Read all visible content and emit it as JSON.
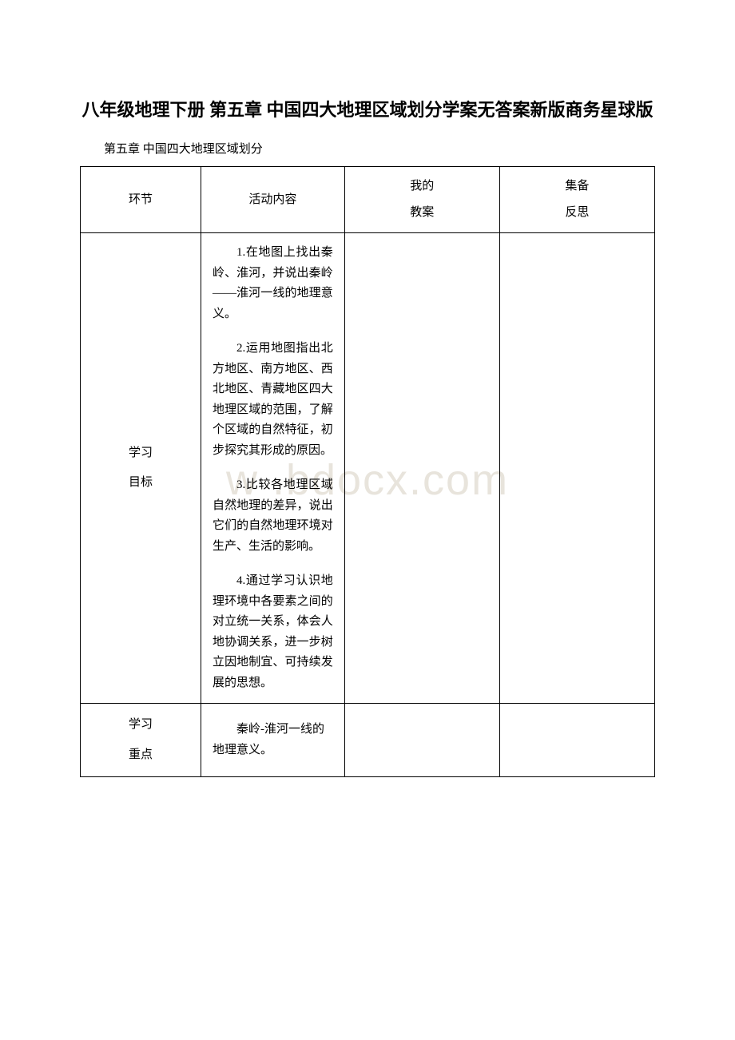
{
  "watermark": "w .bdocx.com",
  "title": "八年级地理下册 第五章 中国四大地理区域划分学案无答案新版商务星球版",
  "subtitle": "第五章 中国四大地理区域划分",
  "table": {
    "headers": {
      "col1": "环节",
      "col2": "活动内容",
      "col3_line1": "我的",
      "col3_line2": "教案",
      "col4_line1": "集备",
      "col4_line2": "反思"
    },
    "rows": [
      {
        "col1_line1": "学习",
        "col1_line2": "目标",
        "content": {
          "p1": "1.在地图上找出秦岭、淮河，并说出秦岭——淮河一线的地理意义。",
          "p2": "2.运用地图指出北方地区、南方地区、西北地区、青藏地区四大地理区域的范围，了解个区域的自然特征，初步探究其形成的原因。",
          "p3": "3.比较各地理区域自然地理的差异，说出它们的自然地理环境对生产、生活的影响。",
          "p4": "4.通过学习认识地理环境中各要素之间的对立统一关系，体会人地协调关系，进一步树立因地制宜、可持续发展的思想。"
        }
      },
      {
        "col1_line1": "学习",
        "col1_line2": "重点",
        "content": "秦岭-淮河一线的地理意义。"
      }
    ]
  },
  "styling": {
    "background_color": "#ffffff",
    "text_color": "#000000",
    "border_color": "#000000",
    "watermark_color": "#e8e4dc",
    "title_fontsize": 22,
    "body_fontsize": 15,
    "watermark_fontsize": 54
  }
}
